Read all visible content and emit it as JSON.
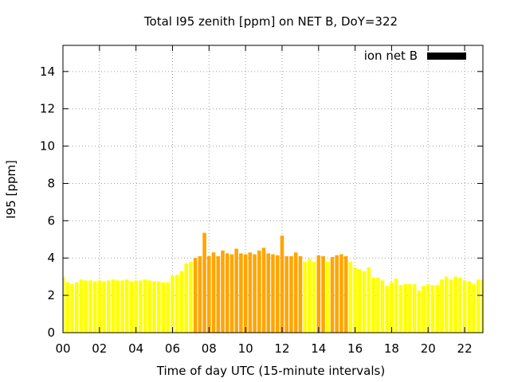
{
  "chart_data": {
    "type": "bar",
    "title": "Total I95 zenith [ppm] on NET B, DoY=322",
    "xlabel": "Time of day UTC (15-minute intervals)",
    "ylabel": "I95 [ppm]",
    "xlim": [
      0,
      23
    ],
    "ylim": [
      0,
      15.4
    ],
    "x_tick_values": [
      0,
      2,
      4,
      6,
      8,
      10,
      12,
      14,
      16,
      18,
      20,
      22
    ],
    "x_tick_labels": [
      "00",
      "02",
      "04",
      "06",
      "08",
      "10",
      "12",
      "14",
      "16",
      "18",
      "20",
      "22"
    ],
    "y_ticks": [
      0,
      2,
      4,
      6,
      8,
      10,
      12,
      14
    ],
    "grid": true,
    "legend": {
      "position": "top-right",
      "entries": [
        "ion net B"
      ]
    },
    "series": [
      {
        "name": "ion net B",
        "interval_hours": 0.25,
        "values": [
          3.0,
          2.7,
          2.6,
          2.7,
          2.85,
          2.8,
          2.8,
          2.75,
          2.8,
          2.75,
          2.8,
          2.85,
          2.8,
          2.8,
          2.85,
          2.75,
          2.8,
          2.8,
          2.85,
          2.8,
          2.75,
          2.75,
          2.7,
          2.7,
          3.05,
          3.1,
          3.3,
          3.7,
          3.8,
          4.0,
          4.1,
          5.35,
          4.1,
          4.3,
          4.1,
          4.4,
          4.25,
          4.2,
          4.5,
          4.25,
          4.2,
          4.3,
          4.2,
          4.4,
          4.55,
          4.25,
          4.2,
          4.15,
          5.2,
          4.1,
          4.1,
          4.3,
          4.1,
          3.8,
          3.95,
          3.8,
          4.15,
          4.1,
          3.8,
          4.05,
          4.15,
          4.2,
          4.1,
          3.8,
          3.5,
          3.4,
          3.3,
          3.5,
          2.95,
          2.95,
          2.8,
          2.5,
          2.7,
          2.9,
          2.55,
          2.6,
          2.6,
          2.6,
          2.25,
          2.5,
          2.6,
          2.55,
          2.55,
          2.85,
          3.0,
          2.85,
          3.0,
          2.95,
          2.8,
          2.75,
          2.6,
          2.85,
          2.85
        ]
      }
    ],
    "colors": {
      "normal": "#ffff00",
      "elevated": "#ffa500",
      "legend_swatch": "#000000",
      "grid": "#a0a0a0"
    },
    "elevated_threshold": 4.0
  }
}
